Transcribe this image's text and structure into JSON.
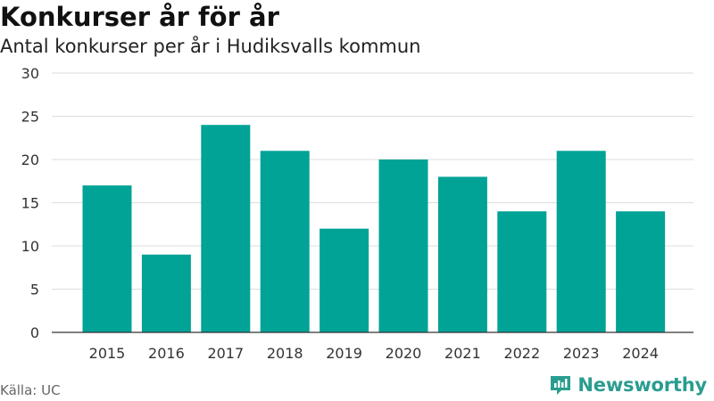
{
  "title": "Konkurser år för år",
  "subtitle": "Antal konkurser per år i Hudiksvalls kommun",
  "source": "Källa: UC",
  "brand": {
    "name": "Newsworthy",
    "icon": "newsworthy-logo-icon"
  },
  "colors": {
    "bar": "#00a396",
    "grid": "#dddddd",
    "axis": "#333333",
    "brand": "#2a9d8f"
  },
  "chart_data": {
    "type": "bar",
    "title": "Konkurser år för år",
    "subtitle": "Antal konkurser per år i Hudiksvalls kommun",
    "xlabel": "",
    "ylabel": "",
    "categories": [
      "2015",
      "2016",
      "2017",
      "2018",
      "2019",
      "2020",
      "2021",
      "2022",
      "2023",
      "2024"
    ],
    "values": [
      17,
      9,
      24,
      21,
      12,
      20,
      18,
      14,
      21,
      14
    ],
    "ylim": [
      0,
      30
    ],
    "yticks": [
      0,
      5,
      10,
      15,
      20,
      25,
      30
    ],
    "grid": true,
    "legend": "none"
  }
}
